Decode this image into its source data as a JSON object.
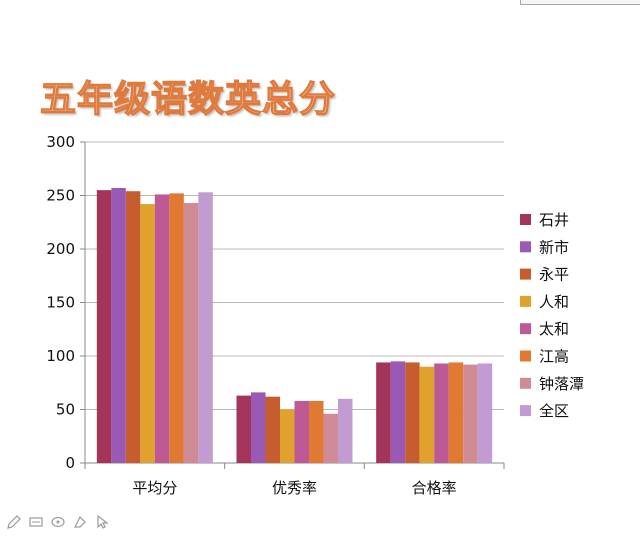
{
  "title": "五年级语数英总分",
  "colors": [
    "#a3345a",
    "#9b59b6",
    "#c65d2f",
    "#e0a12d",
    "#bd5a96",
    "#e07a33",
    "#d08c96",
    "#c39bd3"
  ],
  "chart_data": {
    "type": "bar",
    "title": "五年级语数英总分",
    "categories": [
      "平均分",
      "优秀率",
      "合格率"
    ],
    "series": [
      {
        "name": "石井",
        "values": [
          255,
          63,
          94
        ]
      },
      {
        "name": "新市",
        "values": [
          257,
          66,
          95
        ]
      },
      {
        "name": "永平",
        "values": [
          254,
          62,
          94
        ]
      },
      {
        "name": "人和",
        "values": [
          242,
          50,
          90
        ]
      },
      {
        "name": "太和",
        "values": [
          251,
          58,
          93
        ]
      },
      {
        "name": "江高",
        "values": [
          252,
          58,
          94
        ]
      },
      {
        "name": "钟落潭",
        "values": [
          243,
          46,
          92
        ]
      },
      {
        "name": "全区",
        "values": [
          253,
          60,
          93
        ]
      }
    ],
    "ylim": [
      0,
      300
    ],
    "yticks": [
      0,
      50,
      100,
      150,
      200,
      250,
      300
    ],
    "grid": true,
    "legend": "right",
    "xlabel": "",
    "ylabel": ""
  },
  "toolbar": {
    "icons": [
      "pen-icon",
      "screen-icon",
      "eraser-icon",
      "highlighter-icon",
      "pointer-icon"
    ]
  }
}
